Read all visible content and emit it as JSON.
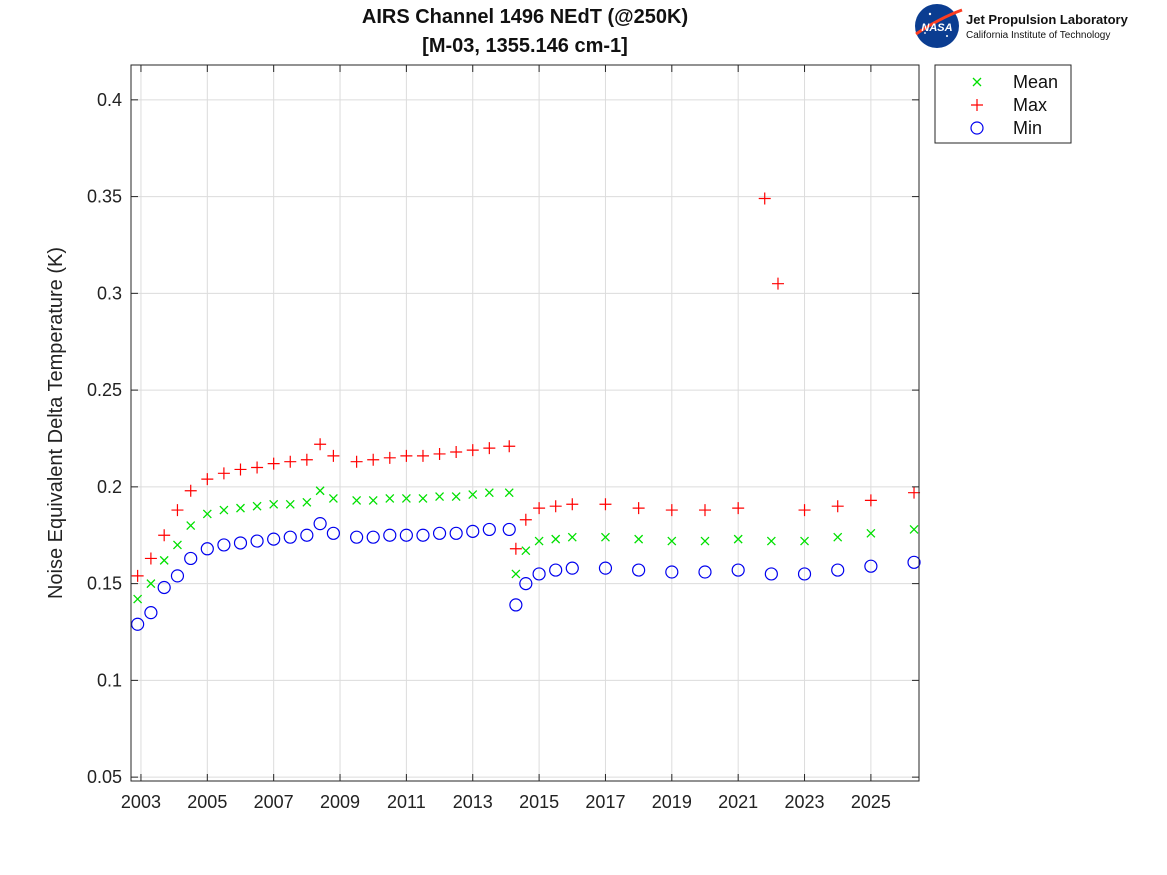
{
  "logo": {
    "org_name": "Jet Propulsion Laboratory",
    "org_sub": "California Institute of Technology",
    "badge_text": "NASA"
  },
  "chart_data": {
    "type": "scatter",
    "title": "AIRS Channel 1496 NEdT (@250K)",
    "subtitle": "[M-03, 1355.146 cm-1]",
    "xlabel": "",
    "ylabel": "Noise Equivalent Delta Temperature (K)",
    "xlim": [
      2002.7,
      2026.45
    ],
    "ylim": [
      0.048,
      0.418
    ],
    "xticks": [
      2003,
      2005,
      2007,
      2009,
      2011,
      2013,
      2015,
      2017,
      2019,
      2021,
      2023,
      2025
    ],
    "xtick_labels": [
      "2003",
      "2005",
      "2007",
      "2009",
      "2011",
      "2013",
      "2015",
      "2017",
      "2019",
      "2021",
      "2023",
      "2025"
    ],
    "yticks": [
      0.05,
      0.1,
      0.15,
      0.2,
      0.25,
      0.3,
      0.35,
      0.4
    ],
    "ytick_labels": [
      "0.05",
      "0.1",
      "0.15",
      "0.2",
      "0.25",
      "0.3",
      "0.35",
      "0.4"
    ],
    "grid": true,
    "legend_position": "outside-top-right",
    "series": [
      {
        "name": "Mean",
        "marker": "x",
        "color": "#00e000",
        "x": [
          2002.9,
          2003.3,
          2003.7,
          2004.1,
          2004.5,
          2005.0,
          2005.5,
          2006.0,
          2006.5,
          2007.0,
          2007.5,
          2008.0,
          2008.4,
          2008.8,
          2009.5,
          2010.0,
          2010.5,
          2011.0,
          2011.5,
          2012.0,
          2012.5,
          2013.0,
          2013.5,
          2014.1,
          2014.3,
          2014.6,
          2015.0,
          2015.5,
          2016.0,
          2017.0,
          2018.0,
          2019.0,
          2020.0,
          2021.0,
          2022.0,
          2023.0,
          2024.0,
          2025.0,
          2026.3
        ],
        "y": [
          0.142,
          0.15,
          0.162,
          0.17,
          0.18,
          0.186,
          0.188,
          0.189,
          0.19,
          0.191,
          0.191,
          0.192,
          0.198,
          0.194,
          0.193,
          0.193,
          0.194,
          0.194,
          0.194,
          0.195,
          0.195,
          0.196,
          0.197,
          0.197,
          0.155,
          0.167,
          0.172,
          0.173,
          0.174,
          0.174,
          0.173,
          0.172,
          0.172,
          0.173,
          0.172,
          0.172,
          0.174,
          0.176,
          0.178
        ]
      },
      {
        "name": "Max",
        "marker": "+",
        "color": "#ff0000",
        "x": [
          2002.9,
          2003.3,
          2003.7,
          2004.1,
          2004.5,
          2005.0,
          2005.5,
          2006.0,
          2006.5,
          2007.0,
          2007.5,
          2008.0,
          2008.4,
          2008.8,
          2009.5,
          2010.0,
          2010.5,
          2011.0,
          2011.5,
          2012.0,
          2012.5,
          2013.0,
          2013.5,
          2014.1,
          2014.3,
          2014.6,
          2015.0,
          2015.5,
          2016.0,
          2017.0,
          2018.0,
          2019.0,
          2020.0,
          2021.0,
          2021.8,
          2022.2,
          2023.0,
          2024.0,
          2025.0,
          2026.3
        ],
        "y": [
          0.154,
          0.163,
          0.175,
          0.188,
          0.198,
          0.204,
          0.207,
          0.209,
          0.21,
          0.212,
          0.213,
          0.214,
          0.222,
          0.216,
          0.213,
          0.214,
          0.215,
          0.216,
          0.216,
          0.217,
          0.218,
          0.219,
          0.22,
          0.221,
          0.168,
          0.183,
          0.189,
          0.19,
          0.191,
          0.191,
          0.189,
          0.188,
          0.188,
          0.189,
          0.349,
          0.305,
          0.188,
          0.19,
          0.193,
          0.197
        ]
      },
      {
        "name": "Min",
        "marker": "o",
        "color": "#0000ee",
        "x": [
          2002.9,
          2003.3,
          2003.7,
          2004.1,
          2004.5,
          2005.0,
          2005.5,
          2006.0,
          2006.5,
          2007.0,
          2007.5,
          2008.0,
          2008.4,
          2008.8,
          2009.5,
          2010.0,
          2010.5,
          2011.0,
          2011.5,
          2012.0,
          2012.5,
          2013.0,
          2013.5,
          2014.1,
          2014.3,
          2014.6,
          2015.0,
          2015.5,
          2016.0,
          2017.0,
          2018.0,
          2019.0,
          2020.0,
          2021.0,
          2022.0,
          2023.0,
          2024.0,
          2025.0,
          2026.3
        ],
        "y": [
          0.129,
          0.135,
          0.148,
          0.154,
          0.163,
          0.168,
          0.17,
          0.171,
          0.172,
          0.173,
          0.174,
          0.175,
          0.181,
          0.176,
          0.174,
          0.174,
          0.175,
          0.175,
          0.175,
          0.176,
          0.176,
          0.177,
          0.178,
          0.178,
          0.139,
          0.15,
          0.155,
          0.157,
          0.158,
          0.158,
          0.157,
          0.156,
          0.156,
          0.157,
          0.155,
          0.155,
          0.157,
          0.159,
          0.161
        ]
      }
    ]
  }
}
